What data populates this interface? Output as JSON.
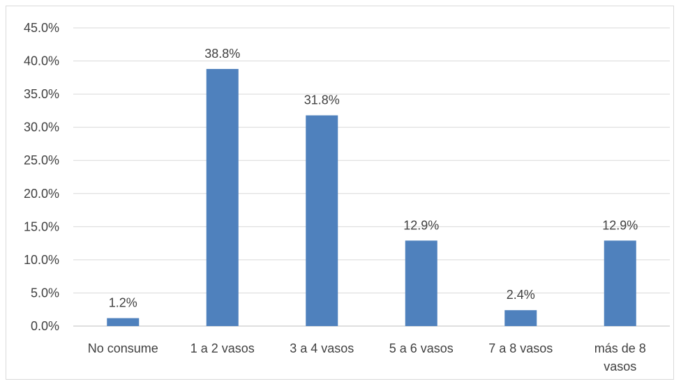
{
  "chart_data": {
    "type": "bar",
    "title": "",
    "xlabel": "",
    "ylabel": "",
    "categories": [
      "No consume",
      "1 a 2 vasos",
      "3 a 4 vasos",
      "5 a 6 vasos",
      "7 a 8 vasos",
      "más de 8 vasos"
    ],
    "category_lines": [
      [
        "No consume"
      ],
      [
        "1 a 2 vasos"
      ],
      [
        "3 a 4 vasos"
      ],
      [
        "5 a 6 vasos"
      ],
      [
        "7 a 8 vasos"
      ],
      [
        "más de 8",
        "vasos"
      ]
    ],
    "values": [
      1.2,
      38.8,
      31.8,
      12.9,
      2.4,
      12.9
    ],
    "data_labels": [
      "1.2%",
      "38.8%",
      "31.8%",
      "12.9%",
      "2.4%",
      "12.9%"
    ],
    "ylim": [
      0,
      45
    ],
    "yticks": [
      0,
      5,
      10,
      15,
      20,
      25,
      30,
      35,
      40,
      45
    ],
    "ytick_labels": [
      "0.0%",
      "5.0%",
      "10.0%",
      "15.0%",
      "20.0%",
      "25.0%",
      "30.0%",
      "35.0%",
      "40.0%",
      "45.0%"
    ],
    "grid": true,
    "legend": "none",
    "colors": {
      "bar": "#4F81BD",
      "grid": "#d9d9d9",
      "text": "#404040",
      "axis": "#bfbfbf"
    }
  }
}
